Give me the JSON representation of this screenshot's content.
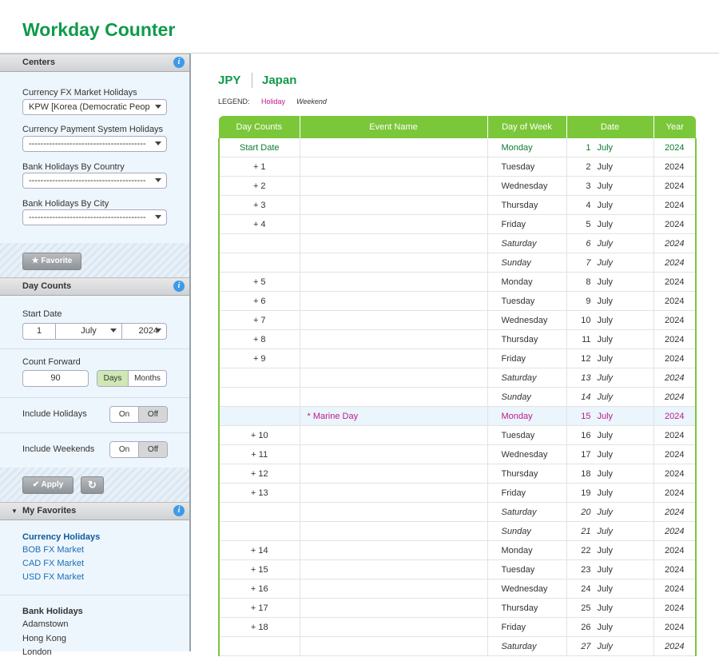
{
  "header": {
    "title": "Workday Counter"
  },
  "sidebar": {
    "centers": {
      "title": "Centers",
      "fields": [
        {
          "label": "Currency FX Market Holidays",
          "value": "KPW [Korea (Democratic People"
        },
        {
          "label": "Currency Payment System Holidays",
          "value": "----------------------------------------"
        },
        {
          "label": "Bank Holidays By Country",
          "value": "----------------------------------------"
        },
        {
          "label": "Bank Holidays By City",
          "value": "----------------------------------------"
        }
      ],
      "button": "Favorite"
    },
    "day_counts": {
      "title": "Day Counts",
      "start_date": {
        "label": "Start Date",
        "day": "1",
        "month": "July",
        "year": "2024"
      },
      "count_forward": {
        "label": "Count Forward",
        "value": "90",
        "options": [
          "Days",
          "Months"
        ]
      },
      "include_holidays": {
        "label": "Include Holidays",
        "options": [
          "On",
          "Off"
        ]
      },
      "include_weekends": {
        "label": "Include Weekends",
        "options": [
          "On",
          "Off"
        ]
      },
      "button": "Apply"
    },
    "favorites": {
      "title": "My Favorites",
      "groups": [
        {
          "title": "Currency Holidays",
          "items": [
            "BOB FX Market",
            "CAD FX Market",
            "USD FX Market"
          ]
        },
        {
          "title": "Bank Holidays",
          "items": [
            "Adamstown",
            "Hong Kong",
            "London"
          ]
        }
      ]
    }
  },
  "main": {
    "currency": "JPY",
    "country": "Japan",
    "legend": {
      "label": "LEGEND:",
      "holiday": "Holiday",
      "weekend": "Weekend"
    },
    "table": {
      "columns": [
        "Day Counts",
        "Event Name",
        "Day of Week",
        "Date",
        "Year"
      ],
      "rows": [
        [
          "Start Date",
          null,
          "Monday",
          "1",
          "July",
          "2024"
        ],
        [
          "+ 1",
          null,
          "Tuesday",
          "2",
          "July",
          "2024"
        ],
        [
          "+ 2",
          null,
          "Wednesday",
          "3",
          "July",
          "2024"
        ],
        [
          "+ 3",
          null,
          "Thursday",
          "4",
          "July",
          "2024"
        ],
        [
          "+ 4",
          null,
          "Friday",
          "5",
          "July",
          "2024"
        ],
        [
          null,
          null,
          "Saturday",
          "6",
          "July",
          "2024"
        ],
        [
          null,
          null,
          "Sunday",
          "7",
          "July",
          "2024"
        ],
        [
          "+ 5",
          null,
          "Monday",
          "8",
          "July",
          "2024"
        ],
        [
          "+ 6",
          null,
          "Tuesday",
          "9",
          "July",
          "2024"
        ],
        [
          "+ 7",
          null,
          "Wednesday",
          "10",
          "July",
          "2024"
        ],
        [
          "+ 8",
          null,
          "Thursday",
          "11",
          "July",
          "2024"
        ],
        [
          "+ 9",
          null,
          "Friday",
          "12",
          "July",
          "2024"
        ],
        [
          null,
          null,
          "Saturday",
          "13",
          "July",
          "2024"
        ],
        [
          null,
          null,
          "Sunday",
          "14",
          "July",
          "2024"
        ],
        [
          null,
          "* Marine Day",
          "Monday",
          "15",
          "July",
          "2024"
        ],
        [
          "+ 10",
          null,
          "Tuesday",
          "16",
          "July",
          "2024"
        ],
        [
          "+ 11",
          null,
          "Wednesday",
          "17",
          "July",
          "2024"
        ],
        [
          "+ 12",
          null,
          "Thursday",
          "18",
          "July",
          "2024"
        ],
        [
          "+ 13",
          null,
          "Friday",
          "19",
          "July",
          "2024"
        ],
        [
          null,
          null,
          "Saturday",
          "20",
          "July",
          "2024"
        ],
        [
          null,
          null,
          "Sunday",
          "21",
          "July",
          "2024"
        ],
        [
          "+ 14",
          null,
          "Monday",
          "22",
          "July",
          "2024"
        ],
        [
          "+ 15",
          null,
          "Tuesday",
          "23",
          "July",
          "2024"
        ],
        [
          "+ 16",
          null,
          "Wednesday",
          "24",
          "July",
          "2024"
        ],
        [
          "+ 17",
          null,
          "Thursday",
          "25",
          "July",
          "2024"
        ],
        [
          "+ 18",
          null,
          "Friday",
          "26",
          "July",
          "2024"
        ],
        [
          null,
          null,
          "Saturday",
          "27",
          "July",
          "2024"
        ]
      ]
    }
  }
}
